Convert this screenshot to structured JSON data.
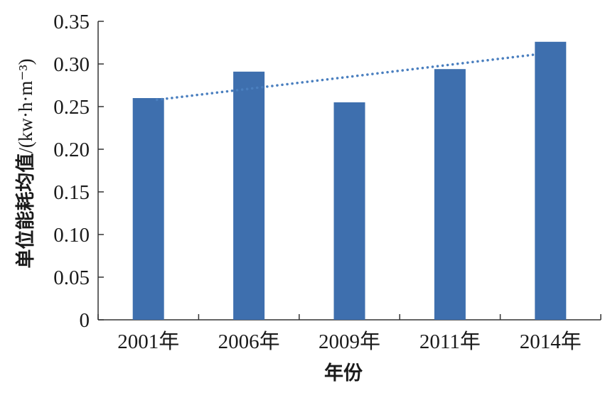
{
  "chart_data": {
    "type": "bar",
    "categories": [
      "2001年",
      "2006年",
      "2009年",
      "2011年",
      "2014年"
    ],
    "values": [
      0.26,
      0.291,
      0.255,
      0.294,
      0.326
    ],
    "trendline": {
      "style": "dotted",
      "start": 0.258,
      "end": 0.311
    },
    "xlabel": "年份",
    "ylabel": "单位能耗均值/(kw·h·m⁻³)",
    "ylim": [
      0,
      0.35
    ],
    "yticks": [
      "0",
      "0.05",
      "0.10",
      "0.15",
      "0.20",
      "0.25",
      "0.30",
      "0.35"
    ],
    "grid": false,
    "colors": {
      "bar": "#3E6FAE",
      "trend": "#4A7FBF",
      "axis": "#333333"
    }
  }
}
